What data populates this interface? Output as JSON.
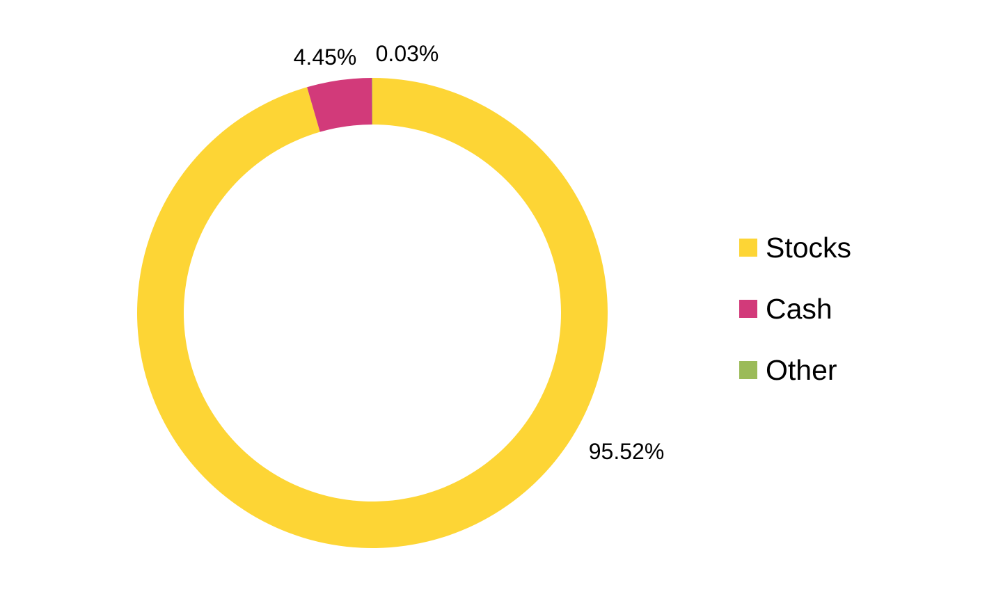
{
  "chart_data": {
    "type": "pie",
    "variant": "donut",
    "title": "",
    "legend_position": "right",
    "slices": [
      {
        "name": "Stocks",
        "value": 95.52,
        "label": "95.52%",
        "color": "#FDD535"
      },
      {
        "name": "Cash",
        "value": 4.45,
        "label": "4.45%",
        "color": "#D23A7A"
      },
      {
        "name": "Other",
        "value": 0.03,
        "label": "0.03%",
        "color": "#9BBB59"
      }
    ]
  }
}
